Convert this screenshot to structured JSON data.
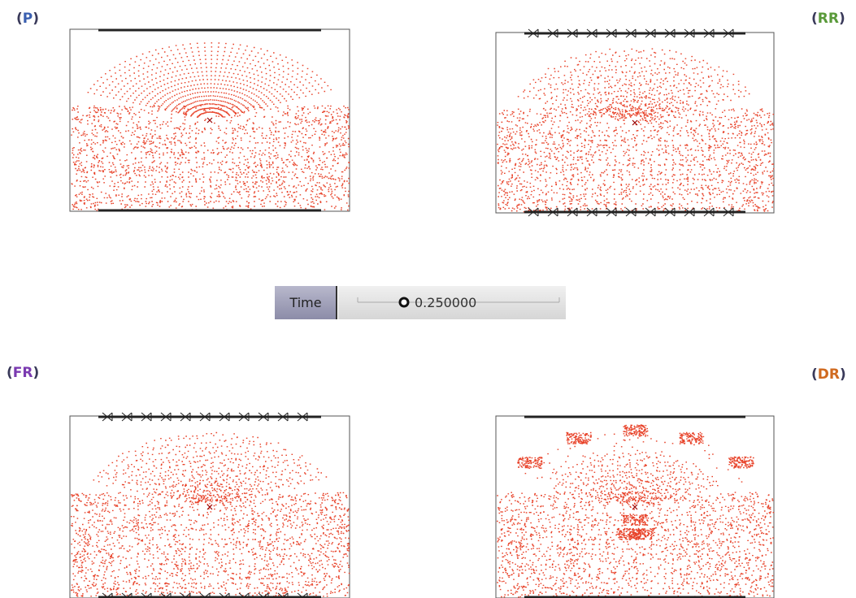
{
  "panels": [
    {
      "label_parts": [
        "(",
        "P",
        ")"
      ],
      "letter_color": "#3a5fb0"
    },
    {
      "label_parts": [
        "(",
        "RR",
        ")"
      ],
      "letter_color": "#5a9a3a"
    },
    {
      "label_parts": [
        "(",
        "FR",
        ")"
      ],
      "letter_color": "#7a3ab0"
    },
    {
      "label_parts": [
        "(",
        "DR",
        ")"
      ],
      "letter_color": "#d06a20"
    }
  ],
  "time_control": {
    "label": "Time",
    "value": "0.250000"
  }
}
